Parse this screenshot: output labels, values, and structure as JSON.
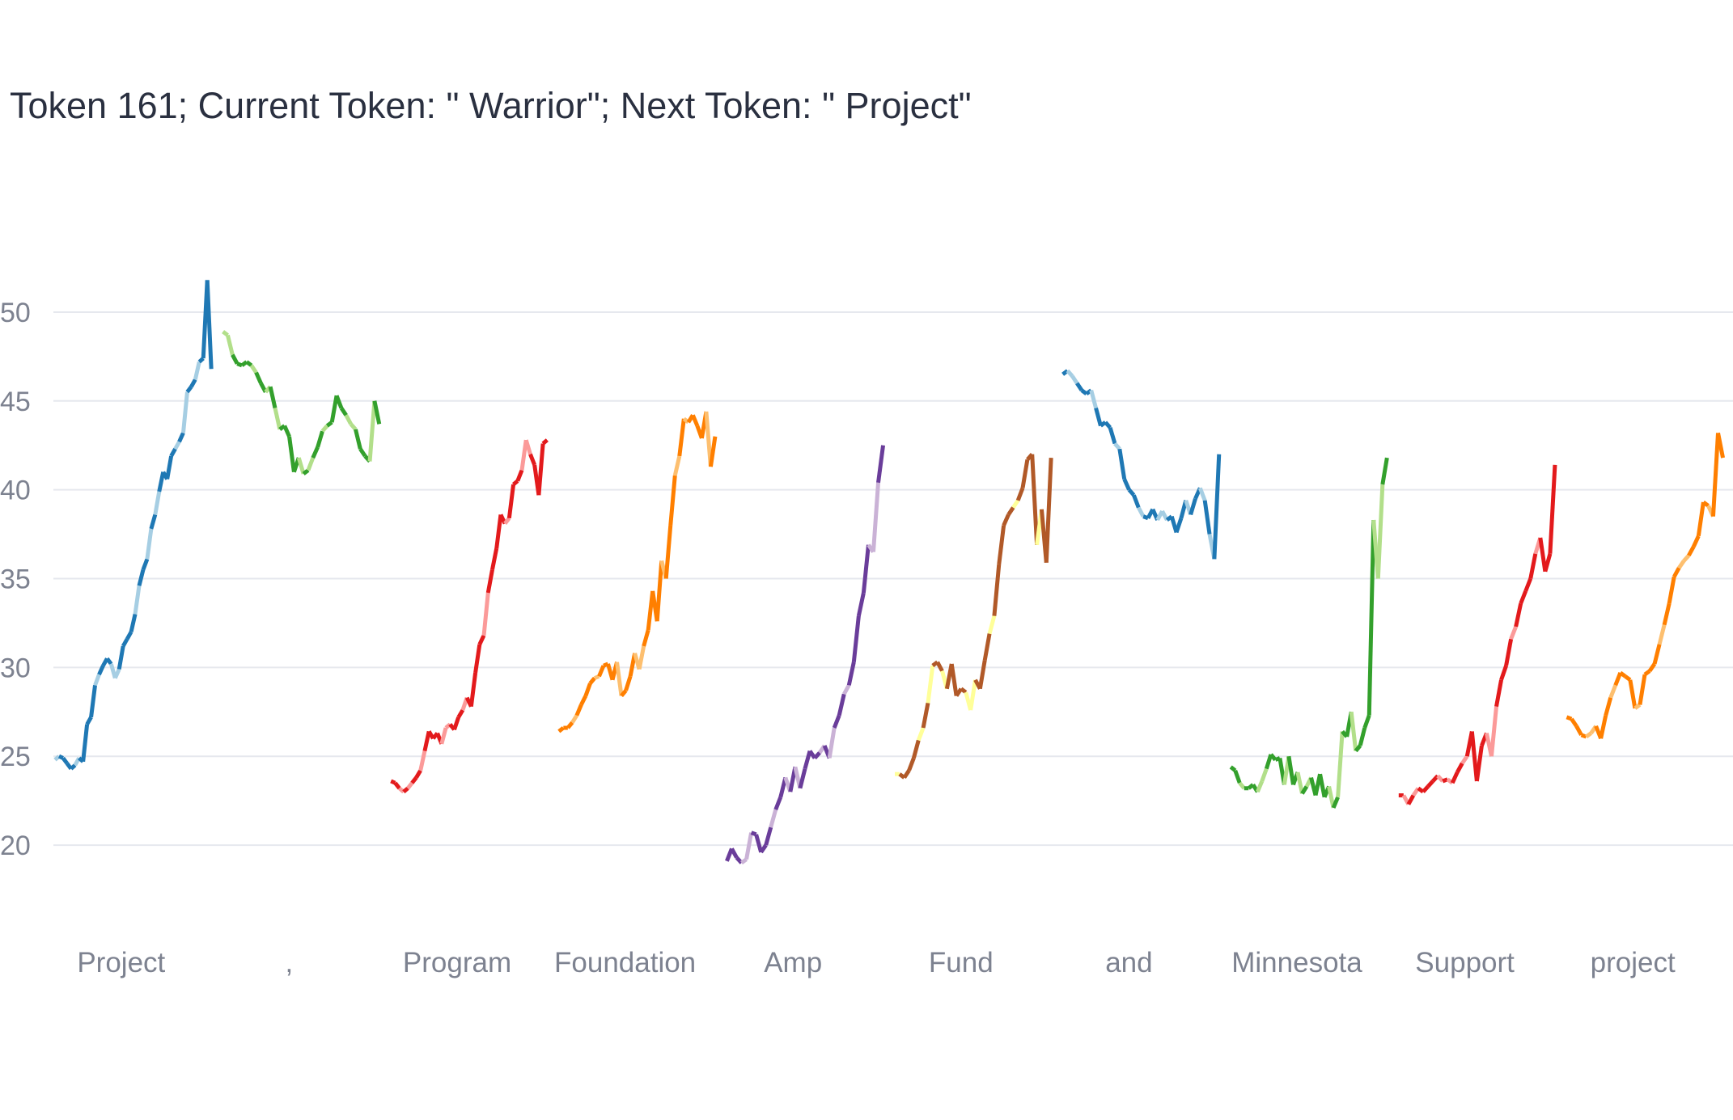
{
  "chart_data": {
    "type": "line",
    "title": "Token 161; Current Token: \" Warrior\"; Next Token: \" Project\"",
    "xlabel": "",
    "ylabel": "",
    "ylim": [
      17.5,
      52
    ],
    "yticks": [
      20,
      25,
      30,
      35,
      40,
      45,
      50
    ],
    "grid": true,
    "legend": "none",
    "colors": {
      "title": "#2a3040",
      "tick": "#7d8290",
      "grid": "#e6e8ee"
    },
    "series": [
      {
        "label": "Project",
        "color_dark": "#1f78b4",
        "color_light": "#a6cee3",
        "values": [
          24.8,
          25.0,
          24.9,
          24.6,
          24.3,
          24.5,
          24.9,
          24.7,
          26.8,
          27.2,
          29.0,
          29.6,
          30.1,
          30.5,
          30.2,
          29.4,
          29.9,
          31.2,
          31.6,
          32.0,
          33.0,
          34.6,
          35.5,
          36.1,
          37.8,
          38.6,
          39.9,
          41.0,
          40.6,
          41.9,
          42.3,
          42.7,
          43.2,
          45.5,
          45.8,
          46.2,
          47.2,
          47.4,
          51.8,
          46.8
        ]
      },
      {
        "label": ",",
        "color_dark": "#33a02c",
        "color_light": "#b2df8a",
        "values": [
          48.9,
          48.7,
          47.6,
          47.1,
          47.0,
          47.2,
          47.0,
          46.6,
          46.0,
          45.5,
          45.8,
          44.6,
          43.4,
          43.6,
          43.0,
          41.0,
          41.8,
          40.9,
          41.1,
          41.8,
          42.4,
          43.3,
          43.6,
          43.8,
          45.3,
          44.6,
          44.2,
          43.7,
          43.4,
          42.3,
          41.9,
          41.6,
          45.0,
          43.7
        ]
      },
      {
        "label": "Program",
        "color_dark": "#e31a1c",
        "color_light": "#fb9a99",
        "values": [
          23.6,
          23.5,
          23.2,
          23.0,
          23.2,
          23.5,
          23.8,
          24.2,
          25.3,
          26.4,
          26.0,
          26.3,
          25.7,
          26.6,
          26.8,
          26.5,
          27.2,
          27.6,
          28.3,
          27.8,
          29.7,
          31.3,
          31.8,
          34.2,
          35.5,
          36.7,
          38.6,
          38.1,
          38.4,
          40.3,
          40.5,
          41.1,
          42.8,
          42.0,
          41.4,
          39.7,
          42.6,
          42.8
        ]
      },
      {
        "label": "Foundation",
        "color_dark": "#ff7f00",
        "color_light": "#fdbf6f",
        "values": [
          26.4,
          26.6,
          26.6,
          26.9,
          27.3,
          27.9,
          28.4,
          29.1,
          29.4,
          29.5,
          30.1,
          30.2,
          29.3,
          30.3,
          28.4,
          28.7,
          29.5,
          30.8,
          29.9,
          31.2,
          32.1,
          34.3,
          32.6,
          36.0,
          35.0,
          38.0,
          40.8,
          41.9,
          44.0,
          43.8,
          44.2,
          43.6,
          42.9,
          44.4,
          41.3,
          43.0
        ]
      },
      {
        "label": "Amp",
        "color_dark": "#6a3d9a",
        "color_light": "#cab2d6",
        "values": [
          19.1,
          19.8,
          19.3,
          19.0,
          19.2,
          20.7,
          20.6,
          19.6,
          20.0,
          21.0,
          22.0,
          22.7,
          23.8,
          23.0,
          24.4,
          23.2,
          24.3,
          25.3,
          24.9,
          25.2,
          25.6,
          24.9,
          26.6,
          27.3,
          28.5,
          29.0,
          30.3,
          32.9,
          34.2,
          36.9,
          36.5,
          40.4,
          42.5
        ]
      },
      {
        "label": "Fund",
        "color_dark": "#b15928",
        "color_light": "#ffff99",
        "values": [
          24.0,
          24.0,
          23.8,
          24.2,
          24.9,
          25.9,
          26.6,
          28.0,
          30.1,
          30.3,
          29.8,
          28.8,
          30.2,
          28.4,
          28.8,
          28.6,
          27.6,
          29.3,
          28.8,
          30.4,
          31.9,
          32.9,
          35.8,
          38.0,
          38.6,
          39.0,
          39.4,
          40.1,
          41.7,
          42.0,
          36.9,
          38.9,
          35.9,
          41.8
        ]
      },
      {
        "label": "and",
        "color_dark": "#1f78b4",
        "color_light": "#a6cee3",
        "values": [
          46.5,
          46.7,
          46.4,
          46.0,
          45.6,
          45.4,
          45.6,
          44.6,
          43.6,
          43.8,
          43.5,
          42.6,
          42.3,
          40.6,
          40.0,
          39.7,
          39.0,
          38.5,
          38.4,
          38.9,
          38.3,
          38.8,
          38.3,
          38.5,
          37.6,
          38.4,
          39.4,
          38.6,
          39.5,
          40.1,
          39.4,
          37.5,
          36.1,
          42.0
        ]
      },
      {
        "label": "Minnesota",
        "color_dark": "#33a02c",
        "color_light": "#b2df8a",
        "values": [
          24.4,
          24.2,
          23.5,
          23.2,
          23.2,
          23.4,
          23.0,
          23.6,
          24.3,
          25.1,
          24.8,
          24.9,
          23.4,
          25.0,
          23.4,
          24.1,
          22.9,
          23.3,
          23.8,
          22.8,
          24.0,
          22.7,
          23.3,
          22.1,
          22.7,
          26.4,
          26.1,
          27.5,
          25.3,
          25.6,
          26.6,
          27.3,
          38.3,
          35.0,
          40.3,
          41.8
        ]
      },
      {
        "label": "Support",
        "color_dark": "#e31a1c",
        "color_light": "#fb9a99",
        "values": [
          22.8,
          22.8,
          22.3,
          22.8,
          23.2,
          23.0,
          23.3,
          23.6,
          23.9,
          23.6,
          23.7,
          23.5,
          24.1,
          24.6,
          25.0,
          26.4,
          23.6,
          25.6,
          26.3,
          25.0,
          27.8,
          29.3,
          30.1,
          31.6,
          32.3,
          33.6,
          34.3,
          35.0,
          36.4,
          37.3,
          35.4,
          36.4,
          41.4
        ]
      },
      {
        "label": "project",
        "color_dark": "#ff7f00",
        "color_light": "#fdbf6f",
        "values": [
          27.2,
          27.1,
          26.7,
          26.2,
          26.1,
          26.3,
          26.7,
          26.0,
          27.3,
          28.3,
          29.0,
          29.7,
          29.5,
          29.3,
          27.7,
          27.9,
          29.6,
          29.8,
          30.2,
          31.3,
          32.4,
          33.6,
          35.1,
          35.6,
          36.0,
          36.3,
          36.8,
          37.4,
          39.3,
          39.1,
          38.5,
          43.2,
          41.8
        ]
      }
    ]
  }
}
